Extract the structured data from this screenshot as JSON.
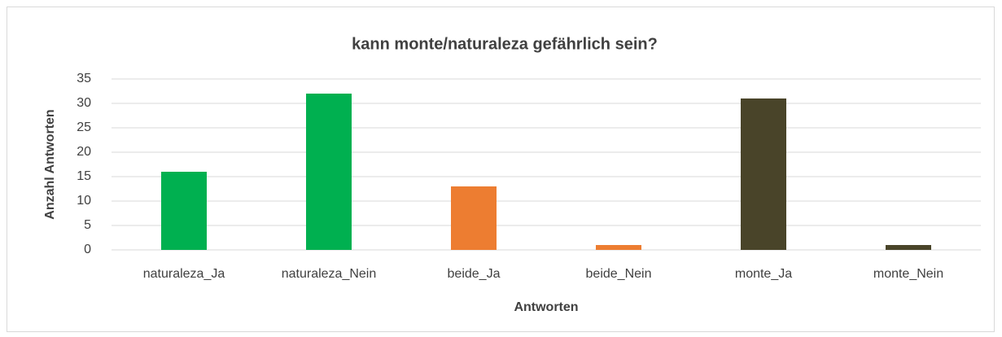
{
  "chart_data": {
    "type": "bar",
    "title": "kann monte/naturaleza gefährlich sein?",
    "x_label": "Antworten",
    "y_label": "Anzahl Antworten",
    "categories": [
      "naturaleza_Ja",
      "naturaleza_Nein",
      "beide_Ja",
      "beide_Nein",
      "monte_Ja",
      "monte_Nein"
    ],
    "values": [
      16,
      32,
      13,
      1,
      31,
      1
    ],
    "colors": [
      "#00b050",
      "#00b050",
      "#ed7d31",
      "#ed7d31",
      "#494429",
      "#494429"
    ],
    "ylim": [
      0,
      35
    ],
    "yticks": [
      0,
      5,
      10,
      15,
      20,
      25,
      30,
      35
    ],
    "grid": true
  }
}
